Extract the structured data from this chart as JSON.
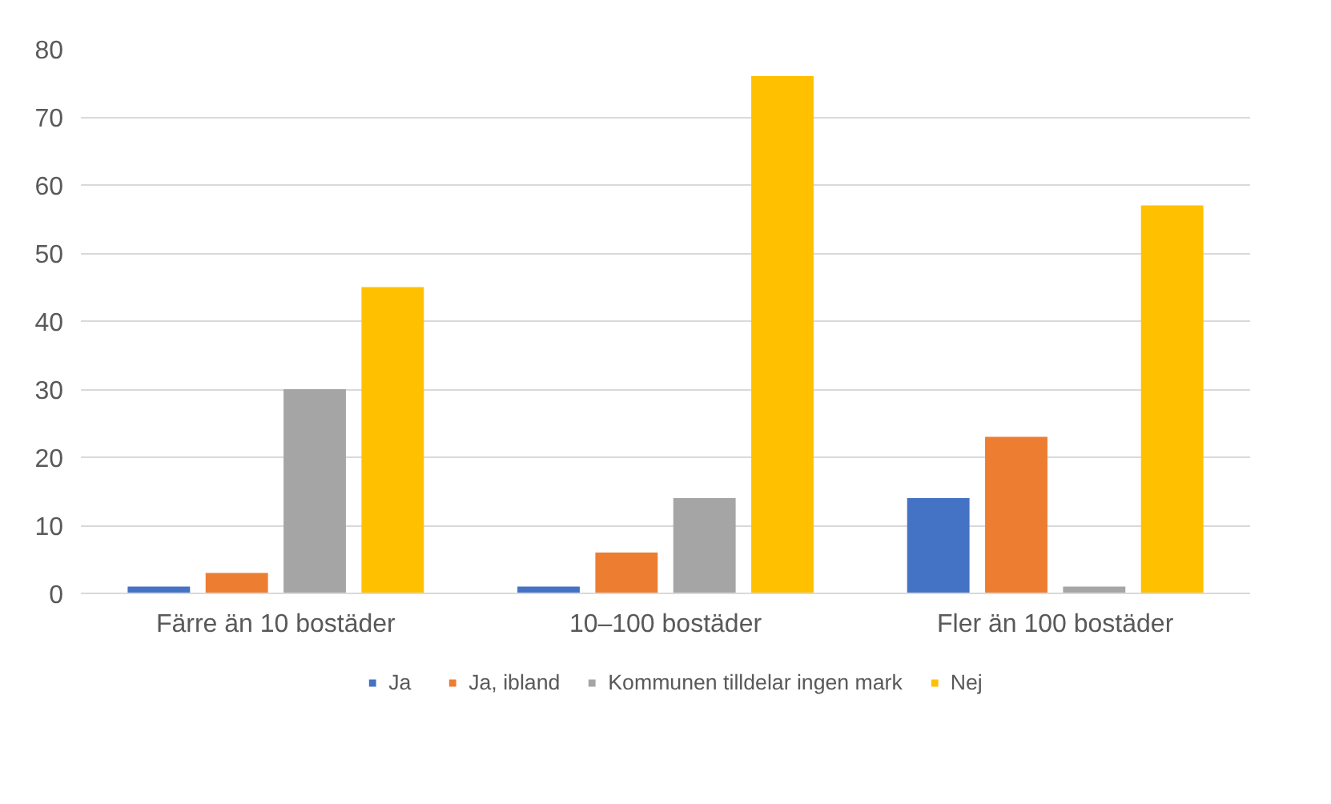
{
  "chart_data": {
    "type": "bar",
    "categories": [
      "Färre än 10 bostäder",
      "10–100 bostäder",
      "Fler än 100 bostäder"
    ],
    "series": [
      {
        "name": "Ja",
        "color": "#4472c4",
        "values": [
          1,
          1,
          14
        ]
      },
      {
        "name": "Ja, ibland",
        "color": "#ed7d31",
        "values": [
          3,
          6,
          23
        ]
      },
      {
        "name": "Kommunen tilldelar ingen mark",
        "color": "#a5a5a5",
        "values": [
          30,
          14,
          1
        ]
      },
      {
        "name": "Nej",
        "color": "#ffc000",
        "values": [
          45,
          76,
          57
        ]
      }
    ],
    "ylim": [
      0,
      80
    ],
    "yticks": [
      0,
      10,
      20,
      30,
      40,
      50,
      60,
      70,
      80
    ],
    "grid": "y",
    "legend": "bottom"
  }
}
